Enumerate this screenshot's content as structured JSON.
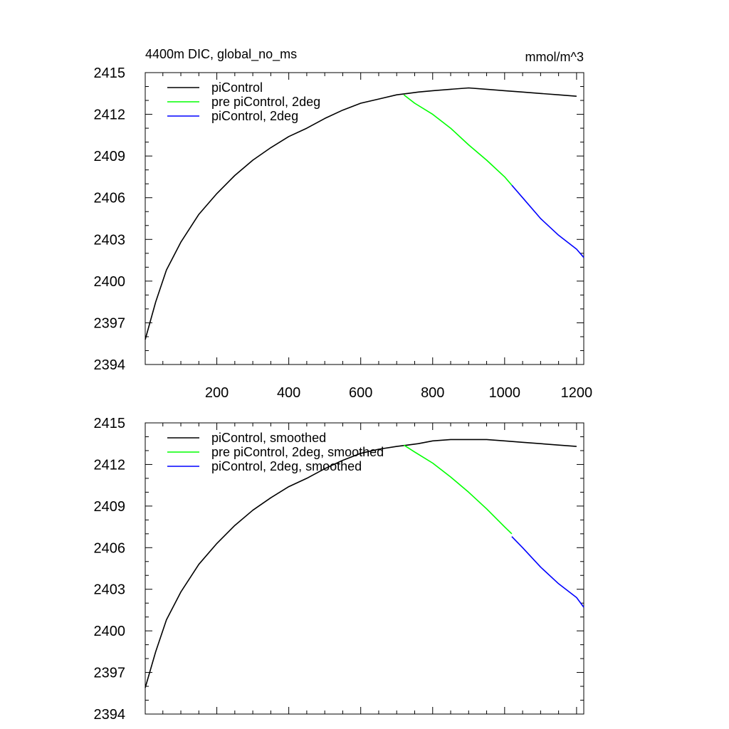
{
  "figure": {
    "title_left": "4400m DIC, global_no_ms",
    "title_right": "mmol/m^3"
  },
  "chart_data": [
    {
      "type": "line",
      "title": "4400m DIC, global_no_ms",
      "units": "mmol/m^3",
      "xlim": [
        1,
        1220
      ],
      "ylim": [
        2394,
        2415
      ],
      "yticks": [
        2394,
        2397,
        2400,
        2403,
        2406,
        2409,
        2412,
        2415
      ],
      "xticks": [
        200,
        400,
        600,
        800,
        1000,
        1200
      ],
      "show_xtick_labels": true,
      "grid": false,
      "legend_position": "top-left",
      "series": [
        {
          "name": "piControl",
          "color": "#000000",
          "x": [
            1,
            30,
            60,
            100,
            150,
            200,
            250,
            300,
            350,
            400,
            450,
            500,
            550,
            600,
            650,
            700,
            730,
            760,
            800,
            850,
            900,
            950,
            1000,
            1050,
            1100,
            1150,
            1200
          ],
          "y": [
            2395.8,
            2398.5,
            2400.8,
            2402.8,
            2404.8,
            2406.3,
            2407.6,
            2408.7,
            2409.6,
            2410.4,
            2411.0,
            2411.7,
            2412.3,
            2412.8,
            2413.1,
            2413.4,
            2413.5,
            2413.6,
            2413.7,
            2413.8,
            2413.9,
            2413.8,
            2413.7,
            2413.6,
            2413.5,
            2413.4,
            2413.3
          ]
        },
        {
          "name": "pre piControl, 2deg",
          "color": "#00ff00",
          "x": [
            720,
            750,
            800,
            850,
            900,
            950,
            1000,
            1020
          ],
          "y": [
            2413.4,
            2412.8,
            2412.0,
            2411.0,
            2409.8,
            2408.7,
            2407.5,
            2406.9
          ]
        },
        {
          "name": "piControl, 2deg",
          "color": "#0000ff",
          "x": [
            1020,
            1050,
            1100,
            1150,
            1200,
            1220
          ],
          "y": [
            2406.9,
            2406.0,
            2404.5,
            2403.3,
            2402.3,
            2401.7
          ]
        }
      ]
    },
    {
      "type": "line",
      "xlim": [
        1,
        1220
      ],
      "ylim": [
        2394,
        2415
      ],
      "yticks": [
        2394,
        2397,
        2400,
        2403,
        2406,
        2409,
        2412,
        2415
      ],
      "xticks": [
        200,
        400,
        600,
        800,
        1000,
        1200
      ],
      "show_xtick_labels": false,
      "grid": false,
      "legend_position": "top-left",
      "series": [
        {
          "name": "piControl, smoothed",
          "color": "#000000",
          "x": [
            1,
            30,
            60,
            100,
            150,
            200,
            250,
            300,
            350,
            400,
            450,
            500,
            550,
            600,
            650,
            700,
            730,
            760,
            800,
            850,
            900,
            950,
            1000,
            1050,
            1100,
            1150,
            1200
          ],
          "y": [
            2395.9,
            2398.5,
            2400.8,
            2402.8,
            2404.8,
            2406.3,
            2407.6,
            2408.7,
            2409.6,
            2410.4,
            2411.0,
            2411.7,
            2412.3,
            2412.8,
            2413.1,
            2413.3,
            2413.4,
            2413.5,
            2413.7,
            2413.8,
            2413.8,
            2413.8,
            2413.7,
            2413.6,
            2413.5,
            2413.4,
            2413.3
          ]
        },
        {
          "name": "pre piControl, 2deg, smoothed",
          "color": "#00ff00",
          "x": [
            720,
            750,
            800,
            850,
            900,
            950,
            1000,
            1020
          ],
          "y": [
            2413.4,
            2412.9,
            2412.1,
            2411.1,
            2410.0,
            2408.8,
            2407.5,
            2407.0
          ]
        },
        {
          "name": "piControl, 2deg, smoothed",
          "color": "#0000ff",
          "x": [
            1020,
            1050,
            1100,
            1150,
            1200,
            1220
          ],
          "y": [
            2406.8,
            2406.0,
            2404.6,
            2403.4,
            2402.4,
            2401.7
          ]
        }
      ]
    }
  ]
}
